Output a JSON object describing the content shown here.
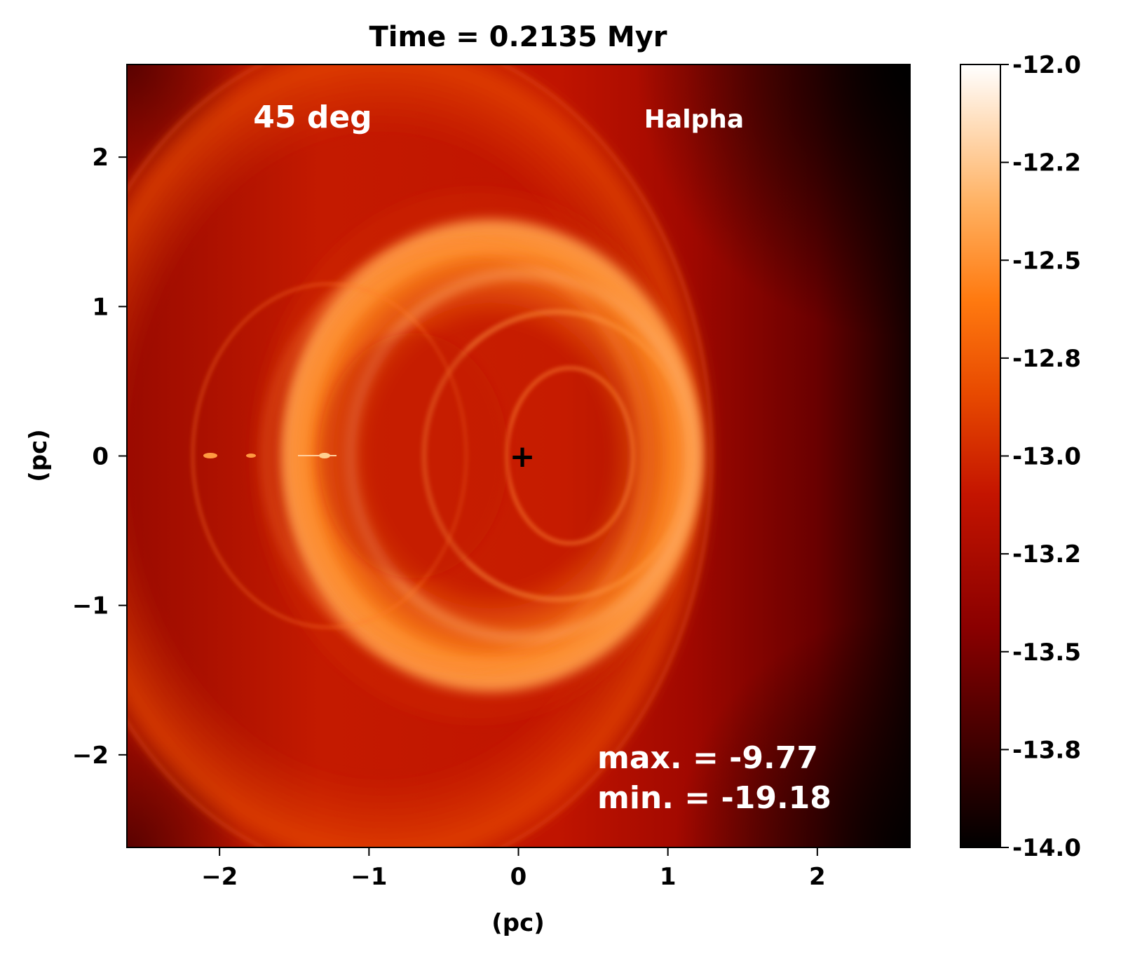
{
  "chart_data": {
    "type": "heatmap",
    "title": "Time = 0.2135 Myr",
    "xlabel": "(pc)",
    "ylabel": "(pc)",
    "xlim": [
      -2.62,
      2.62
    ],
    "ylim": [
      -2.62,
      2.62
    ],
    "x_ticks": [
      {
        "value": -2,
        "label": "−2"
      },
      {
        "value": -1,
        "label": "−1"
      },
      {
        "value": 0,
        "label": "0"
      },
      {
        "value": 1,
        "label": "1"
      },
      {
        "value": 2,
        "label": "2"
      }
    ],
    "y_ticks": [
      {
        "value": 2,
        "label": "2"
      },
      {
        "value": 1,
        "label": "1"
      },
      {
        "value": 0,
        "label": "0"
      },
      {
        "value": -1,
        "label": "−1"
      },
      {
        "value": -2,
        "label": "−2"
      }
    ],
    "annotations": {
      "angle": "45 deg",
      "line": "Halpha",
      "max_text": "max. = -9.77",
      "min_text": "min. = -19.18",
      "center_marker": "+"
    },
    "center_marker_position": [
      0,
      0
    ],
    "colorbar": {
      "vmin": -14.0,
      "vmax": -12.0,
      "ticks": [
        {
          "value": -12.0,
          "label": "-12.0"
        },
        {
          "value": -12.25,
          "label": "-12.2"
        },
        {
          "value": -12.5,
          "label": "-12.5"
        },
        {
          "value": -12.75,
          "label": "-12.8"
        },
        {
          "value": -13.0,
          "label": "-13.0"
        },
        {
          "value": -13.25,
          "label": "-13.2"
        },
        {
          "value": -13.5,
          "label": "-13.5"
        },
        {
          "value": -13.75,
          "label": "-13.8"
        },
        {
          "value": -14.0,
          "label": "-14.0"
        }
      ],
      "colormap": "gist_heat",
      "colors": [
        "#000000",
        "#3a0000",
        "#8a0000",
        "#c41400",
        "#e84a00",
        "#ff7a10",
        "#ffb060",
        "#ffe0c0",
        "#ffffff"
      ]
    },
    "grid": false
  }
}
